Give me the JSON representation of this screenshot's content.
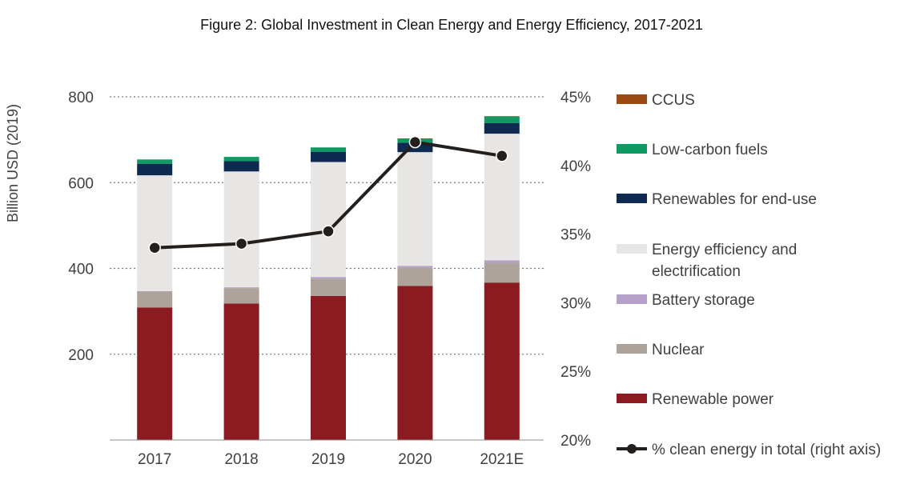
{
  "chart_data": {
    "type": "bar",
    "stacked": true,
    "title": "Figure 2: Global Investment in Clean Energy and Energy Efficiency, 2017-2021",
    "ylabel": "Billion USD (2019)",
    "ylim": [
      0,
      800
    ],
    "yticks": [
      200,
      400,
      600,
      800
    ],
    "y2lim": [
      0.2,
      0.45
    ],
    "y2ticks": [
      {
        "value": 0.2,
        "label": "20%"
      },
      {
        "value": 0.25,
        "label": "25%"
      },
      {
        "value": 0.3,
        "label": "30%"
      },
      {
        "value": 0.35,
        "label": "35%"
      },
      {
        "value": 0.4,
        "label": "40%"
      },
      {
        "value": 0.45,
        "label": "45%"
      }
    ],
    "grid": true,
    "legend_position": "right",
    "categories": [
      "2017",
      "2018",
      "2019",
      "2020",
      "2021E"
    ],
    "series": [
      {
        "name": "Renewable power",
        "color": "#8b1a21",
        "values": [
          309,
          318,
          336,
          359,
          367
        ]
      },
      {
        "name": "Nuclear",
        "color": "#ada39b",
        "values": [
          37,
          36,
          40,
          43,
          46
        ]
      },
      {
        "name": "Battery storage",
        "color": "#b4a0c8",
        "values": [
          1,
          2,
          4,
          4,
          6
        ]
      },
      {
        "name": "Energy efficiency  and electrification",
        "color": "#e7e6e4",
        "values": [
          270,
          270,
          268,
          265,
          295
        ]
      },
      {
        "name": "Renewables for end-use",
        "color": "#0e2a50",
        "values": [
          27,
          24,
          24,
          22,
          25
        ]
      },
      {
        "name": "Low-carbon fuels",
        "color": "#0f9a63",
        "values": [
          10,
          10,
          10,
          9,
          15
        ]
      },
      {
        "name": "CCUS",
        "color": "#9b4a14",
        "values": [
          0,
          0,
          0,
          1,
          1
        ]
      }
    ],
    "line_series": {
      "name": "% clean energy in total (right axis)",
      "axis": "right",
      "color": "#231f1c",
      "values": [
        0.34,
        0.343,
        0.352,
        0.417,
        0.407
      ]
    },
    "legend": [
      {
        "label": "CCUS",
        "color": "#9b4a14",
        "kind": "box"
      },
      {
        "label": "Low-carbon fuels",
        "color": "#0f9a63",
        "kind": "box"
      },
      {
        "label": "Renewables for end-use",
        "color": "#0e2a50",
        "kind": "box"
      },
      {
        "label": "Energy efficiency  and",
        "label2": "electrification",
        "color": "#e7e6e4",
        "kind": "box"
      },
      {
        "label": "Battery storage",
        "color": "#b4a0c8",
        "kind": "box"
      },
      {
        "label": "Nuclear",
        "color": "#ada39b",
        "kind": "box"
      },
      {
        "label": "Renewable power",
        "color": "#8b1a21",
        "kind": "box"
      },
      {
        "label": "% clean energy in total (right axis)",
        "color": "#231f1c",
        "kind": "line"
      }
    ]
  }
}
